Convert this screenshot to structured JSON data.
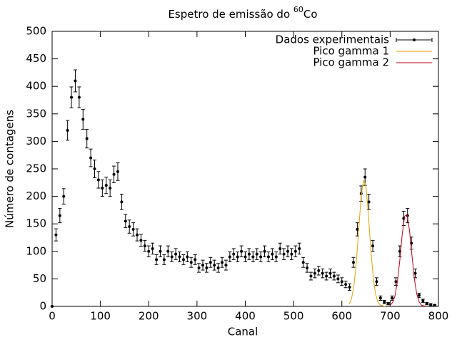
{
  "chart_data": {
    "type": "errorbar-fit",
    "title": {
      "before": "Espetro de emissão do ",
      "superscript": "60",
      "after": "Co"
    },
    "xlabel": "Canal",
    "ylabel": "Número de contagens",
    "xlim": [
      0,
      800
    ],
    "xticks": [
      0,
      100,
      200,
      300,
      400,
      500,
      600,
      700,
      800
    ],
    "ylim": [
      0,
      500
    ],
    "yticks": [
      0,
      50,
      100,
      150,
      200,
      250,
      300,
      350,
      400,
      450,
      500
    ],
    "grid": false,
    "legend": "top-right",
    "series": [
      {
        "name": "Dados experimentais",
        "color": "#000000",
        "style": "points",
        "x": [
          0,
          8,
          16,
          24,
          32,
          40,
          48,
          56,
          64,
          72,
          80,
          88,
          96,
          104,
          112,
          120,
          128,
          136,
          144,
          152,
          160,
          168,
          176,
          184,
          192,
          200,
          208,
          216,
          224,
          232,
          240,
          248,
          256,
          264,
          272,
          280,
          288,
          296,
          304,
          312,
          320,
          328,
          336,
          344,
          352,
          360,
          368,
          376,
          384,
          392,
          400,
          408,
          416,
          424,
          432,
          440,
          448,
          456,
          464,
          472,
          480,
          488,
          496,
          504,
          512,
          520,
          528,
          536,
          544,
          552,
          560,
          568,
          576,
          584,
          592,
          600,
          608,
          616,
          624,
          632,
          640,
          648,
          656,
          664,
          672,
          680,
          688,
          696,
          704,
          712,
          720,
          728,
          736,
          744,
          752,
          760,
          768,
          776,
          784,
          792
        ],
        "values": [
          0,
          130,
          165,
          200,
          320,
          380,
          410,
          380,
          340,
          305,
          270,
          250,
          230,
          215,
          220,
          215,
          240,
          245,
          190,
          155,
          145,
          140,
          130,
          120,
          110,
          100,
          105,
          85,
          100,
          85,
          100,
          90,
          95,
          90,
          85,
          90,
          80,
          85,
          70,
          75,
          70,
          80,
          75,
          70,
          80,
          75,
          90,
          95,
          90,
          100,
          90,
          95,
          90,
          95,
          90,
          100,
          90,
          95,
          90,
          105,
          95,
          100,
          95,
          100,
          105,
          80,
          70,
          55,
          60,
          65,
          60,
          55,
          60,
          55,
          50,
          45,
          40,
          35,
          80,
          140,
          205,
          235,
          190,
          110,
          45,
          15,
          8,
          5,
          15,
          45,
          100,
          160,
          165,
          115,
          60,
          20,
          10,
          5,
          3,
          2
        ],
        "errors": [
          0,
          11,
          13,
          14,
          18,
          19,
          20,
          19,
          18,
          17,
          16,
          16,
          15,
          15,
          15,
          15,
          15,
          16,
          14,
          12,
          12,
          12,
          11,
          11,
          10,
          10,
          10,
          9,
          10,
          9,
          10,
          9,
          10,
          9,
          9,
          9,
          9,
          9,
          8,
          9,
          8,
          9,
          9,
          8,
          9,
          9,
          9,
          10,
          9,
          10,
          9,
          10,
          9,
          10,
          9,
          10,
          9,
          10,
          9,
          10,
          10,
          10,
          10,
          10,
          10,
          9,
          8,
          7,
          8,
          8,
          8,
          7,
          8,
          7,
          7,
          7,
          6,
          6,
          9,
          12,
          14,
          15,
          14,
          10,
          7,
          4,
          3,
          2,
          4,
          7,
          10,
          13,
          13,
          11,
          8,
          4,
          3,
          2,
          2,
          1
        ]
      },
      {
        "name": "Pico gamma 1",
        "color": "#e6a000",
        "style": "line",
        "x": [
          615,
          620,
          625,
          630,
          635,
          640,
          645,
          650,
          655,
          660,
          665,
          670,
          675,
          680,
          685,
          690
        ],
        "values": [
          4,
          14,
          38,
          81,
          141,
          200,
          230,
          217,
          166,
          103,
          52,
          22,
          7,
          2,
          1,
          0
        ]
      },
      {
        "name": "Pico gamma 2",
        "color": "#c0001a",
        "style": "line",
        "x": [
          700,
          705,
          710,
          715,
          720,
          725,
          730,
          735,
          740,
          745,
          750,
          755,
          760,
          765,
          770,
          775
        ],
        "values": [
          2,
          7,
          19,
          45,
          84,
          131,
          164,
          167,
          139,
          94,
          51,
          23,
          8,
          2,
          1,
          0
        ]
      }
    ]
  }
}
